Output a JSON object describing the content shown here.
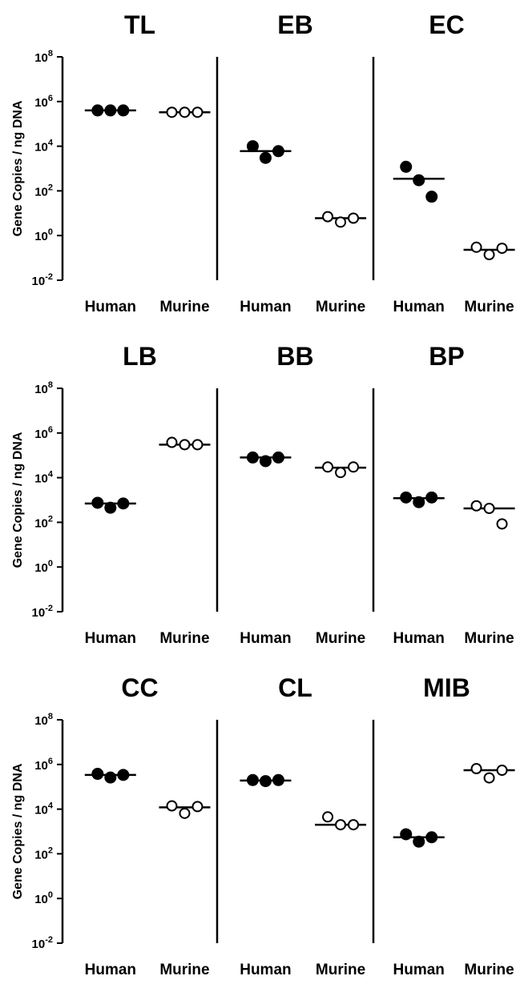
{
  "ylabel": "Gene Copies / ng DNA",
  "y_scale": "log10",
  "ylim": [
    0.01,
    100000000
  ],
  "y_ticks": [
    {
      "base": "10",
      "exp": "8"
    },
    {
      "base": "10",
      "exp": "6"
    },
    {
      "base": "10",
      "exp": "4"
    },
    {
      "base": "10",
      "exp": "2"
    },
    {
      "base": "10",
      "exp": "0"
    },
    {
      "base": "10",
      "exp": "-2"
    }
  ],
  "group_labels": [
    "Human",
    "Murine"
  ],
  "colors": {
    "human_marker": "#000000",
    "murine_marker": "#ffffff",
    "axis": "#000000"
  },
  "chart_data": [
    {
      "type": "scatter",
      "row": "1",
      "panels": [
        {
          "title": "TL",
          "series": [
            {
              "group": "Human",
              "filled": true,
              "values": [
                400000,
                400000,
                400000
              ],
              "mean": 400000
            },
            {
              "group": "Murine",
              "filled": false,
              "values": [
                330000,
                330000,
                330000
              ],
              "mean": 330000
            }
          ]
        },
        {
          "title": "EB",
          "series": [
            {
              "group": "Human",
              "filled": true,
              "values": [
                10000,
                3000,
                6000
              ],
              "mean": 6000
            },
            {
              "group": "Murine",
              "filled": false,
              "values": [
                7,
                4,
                6
              ],
              "mean": 6
            }
          ]
        },
        {
          "title": "EC",
          "series": [
            {
              "group": "Human",
              "filled": true,
              "values": [
                1200,
                300,
                55
              ],
              "mean": 350
            },
            {
              "group": "Murine",
              "filled": false,
              "values": [
                0.3,
                0.14,
                0.27
              ],
              "mean": 0.23
            }
          ]
        }
      ]
    },
    {
      "type": "scatter",
      "row": "2",
      "panels": [
        {
          "title": "LB",
          "series": [
            {
              "group": "Human",
              "filled": true,
              "values": [
                750,
                450,
                700
              ],
              "mean": 700
            },
            {
              "group": "Murine",
              "filled": false,
              "values": [
                380000,
                300000,
                300000
              ],
              "mean": 300000
            }
          ]
        },
        {
          "title": "BB",
          "series": [
            {
              "group": "Human",
              "filled": true,
              "values": [
                80000,
                55000,
                80000
              ],
              "mean": 80000
            },
            {
              "group": "Murine",
              "filled": false,
              "values": [
                30000,
                17000,
                30000
              ],
              "mean": 28000
            }
          ]
        },
        {
          "title": "BP",
          "series": [
            {
              "group": "Human",
              "filled": true,
              "values": [
                1300,
                800,
                1300
              ],
              "mean": 1200
            },
            {
              "group": "Murine",
              "filled": false,
              "values": [
                550,
                420,
                85
              ],
              "mean": 420
            }
          ]
        }
      ]
    },
    {
      "type": "scatter",
      "row": "3",
      "panels": [
        {
          "title": "CC",
          "series": [
            {
              "group": "Human",
              "filled": true,
              "values": [
                380000,
                260000,
                340000
              ],
              "mean": 340000
            },
            {
              "group": "Murine",
              "filled": false,
              "values": [
                14000,
                6500,
                13000
              ],
              "mean": 12000
            }
          ]
        },
        {
          "title": "CL",
          "series": [
            {
              "group": "Human",
              "filled": true,
              "values": [
                200000,
                180000,
                200000
              ],
              "mean": 190000
            },
            {
              "group": "Murine",
              "filled": false,
              "values": [
                4500,
                2000,
                2000
              ],
              "mean": 2000
            }
          ]
        },
        {
          "title": "MIB",
          "series": [
            {
              "group": "Human",
              "filled": true,
              "values": [
                750,
                350,
                550
              ],
              "mean": 550
            },
            {
              "group": "Murine",
              "filled": false,
              "values": [
                650000,
                250000,
                550000
              ],
              "mean": 550000
            }
          ]
        }
      ]
    }
  ]
}
